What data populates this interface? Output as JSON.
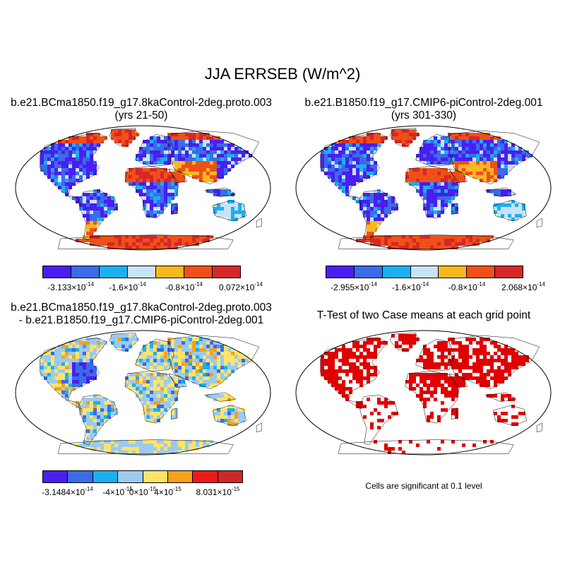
{
  "figure": {
    "title": "JJA ERRSEB (W/m^2)"
  },
  "panels": [
    {
      "title_line1": "b.e21.BCma1850.f19_g17.8kaControl-2deg.proto.003",
      "title_line2": "(yrs 21-50)",
      "palette": "abs",
      "colorbar": {
        "colors": [
          "#4a1ef0",
          "#3b6be8",
          "#1ab0f0",
          "#c8e4f4",
          "#f8b820",
          "#f05018",
          "#d42828"
        ],
        "labels": [
          {
            "mant": "-3.133",
            "exp": "-14"
          },
          {
            "mant": "-1.6",
            "exp": "-14"
          },
          {
            "mant": "-0.8",
            "exp": "-14"
          },
          {
            "mant": "0.072",
            "exp": "-14"
          }
        ]
      }
    },
    {
      "title_line1": "b.e21.B1850.f19_g17.CMIP6-piControl-2deg.001",
      "title_line2": "(yrs 301-330)",
      "palette": "abs",
      "colorbar": {
        "colors": [
          "#4a1ef0",
          "#3b6be8",
          "#1ab0f0",
          "#c8e4f4",
          "#f8b820",
          "#f05018",
          "#d42828"
        ],
        "labels": [
          {
            "mant": "-2.955",
            "exp": "-14"
          },
          {
            "mant": "-1.6",
            "exp": "-14"
          },
          {
            "mant": "-0.8",
            "exp": "-14"
          },
          {
            "mant": "2.068",
            "exp": "-14"
          }
        ]
      }
    },
    {
      "title_line1": "b.e21.BCma1850.f19_g17.8kaControl-2deg.proto.003",
      "title_line2": "- b.e21.B1850.f19_g17.CMIP6-piControl-2deg.001",
      "palette": "diff",
      "colorbar": {
        "colors": [
          "#4a1ef0",
          "#3b6be8",
          "#1ab0f0",
          "#9ccaee",
          "#fce468",
          "#f8a018",
          "#f01818",
          "#d02828"
        ],
        "labels": [
          {
            "mant": "-3.1484",
            "exp": "-14"
          },
          {
            "mant": "-4",
            "exp": "-15"
          },
          {
            "mant": "0",
            "exp": "-15"
          },
          {
            "mant": "4",
            "exp": "-15"
          },
          {
            "mant": "8.031",
            "exp": "-15"
          }
        ]
      }
    },
    {
      "title_line1": "T-Test of two Case means at each grid point",
      "title_line2": "",
      "palette": "sig",
      "note": "Cells are significant at 0.1 level"
    }
  ],
  "times_sign": "×10",
  "colors": {
    "sig": "#e00000",
    "coast": "#000000"
  }
}
